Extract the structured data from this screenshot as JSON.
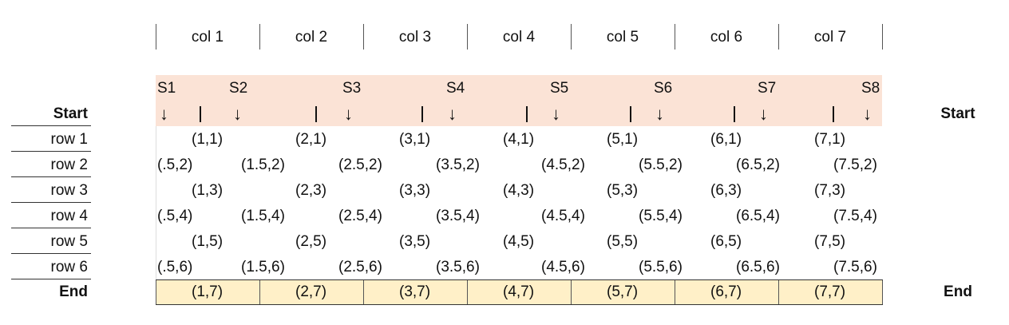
{
  "columns": [
    "col 1",
    "col 2",
    "col 3",
    "col 4",
    "col 5",
    "col 6",
    "col 7"
  ],
  "start_label": "Start",
  "end_label": "End",
  "rows": [
    "row 1",
    "row 2",
    "row 3",
    "row 4",
    "row 5",
    "row 6"
  ],
  "s_labels": [
    "S1",
    "S2",
    "S3",
    "S4",
    "S5",
    "S6",
    "S7",
    "S8"
  ],
  "arrow_glyph": "↓",
  "colors": {
    "start_band": "#fbe3d6",
    "end_band": "#fff0c8"
  },
  "odd_row_cells": {
    "row1": [
      "(1,1)",
      "(2,1)",
      "(3,1)",
      "(4,1)",
      "(5,1)",
      "(6,1)",
      "(7,1)"
    ],
    "row3": [
      "(1,3)",
      "(2,3)",
      "(3,3)",
      "(4,3)",
      "(5,3)",
      "(6,3)",
      "(7,3)"
    ],
    "row5": [
      "(1,5)",
      "(2,5)",
      "(3,5)",
      "(4,5)",
      "(5,5)",
      "(6,5)",
      "(7,5)"
    ]
  },
  "even_row_cells": {
    "row2": [
      "(.5,2)",
      "(1.5,2)",
      "(2.5,2)",
      "(3.5,2)",
      "(4.5,2)",
      "(5.5,2)",
      "(6.5,2)",
      "(7.5,2)"
    ],
    "row4": [
      "(.5,4)",
      "(1.5,4)",
      "(2.5,4)",
      "(3.5,4)",
      "(4.5,4)",
      "(5.5,4)",
      "(6.5,4)",
      "(7.5,4)"
    ],
    "row6": [
      "(.5,6)",
      "(1.5,6)",
      "(2.5,6)",
      "(3.5,6)",
      "(4.5,6)",
      "(5.5,6)",
      "(6.5,6)",
      "(7.5,6)"
    ]
  },
  "end_cells": [
    "(1,7)",
    "(2,7)",
    "(3,7)",
    "(4,7)",
    "(5,7)",
    "(6,7)",
    "(7,7)"
  ]
}
